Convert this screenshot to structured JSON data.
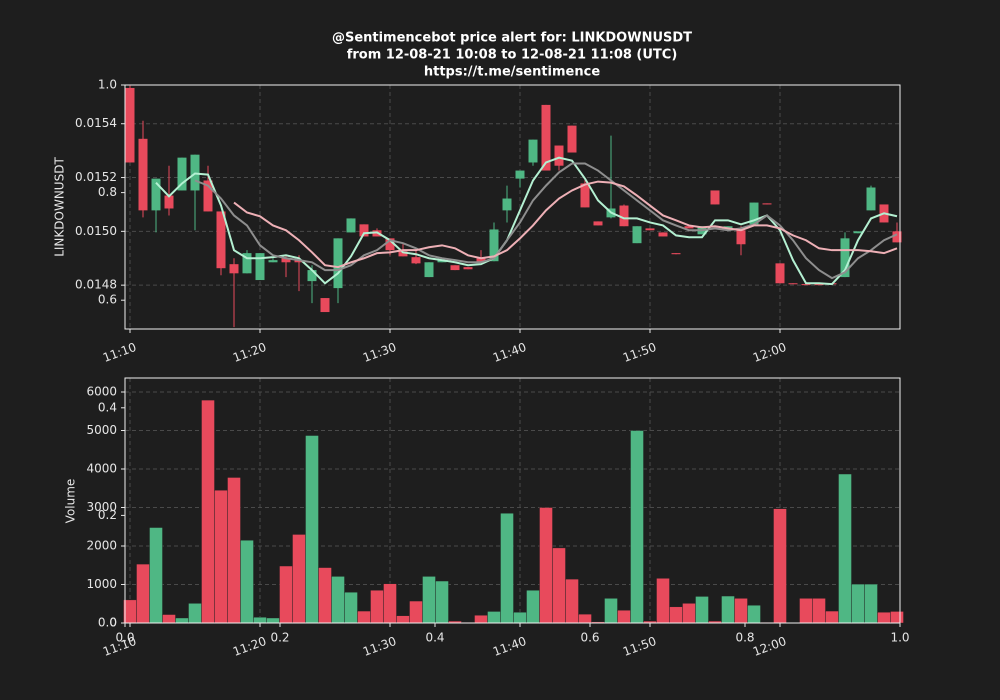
{
  "chart_data": [
    {
      "type": "candlestick",
      "title": "@Sentimencebot price alert for: LINKDOWNUSDT",
      "subtitle": "from 12-08-21 10:08 to 12-08-21 11:08 (UTC)",
      "url": "https://t.me/sentimence",
      "ylabel": "LINKDOWNUSDT",
      "categories": [
        "11:10",
        null,
        null,
        null,
        null,
        null,
        null,
        null,
        null,
        null,
        "11:20",
        null,
        null,
        null,
        null,
        null,
        null,
        null,
        null,
        null,
        "11:30",
        null,
        null,
        null,
        null,
        null,
        null,
        null,
        null,
        null,
        "11:40",
        null,
        null,
        null,
        null,
        null,
        null,
        null,
        null,
        null,
        "11:50",
        null,
        null,
        null,
        null,
        null,
        null,
        null,
        null,
        null,
        "12:00",
        null,
        null,
        null,
        null,
        null,
        null,
        null,
        null,
        null
      ],
      "open": [
        0.015533,
        0.015344,
        0.015078,
        0.015133,
        0.015152,
        0.015152,
        0.015189,
        0.015074,
        0.014878,
        0.014844,
        0.014819,
        0.014885,
        0.0149,
        0.014893,
        0.014815,
        0.014752,
        0.014789,
        0.014996,
        0.015026,
        0.015004,
        0.014974,
        0.014926,
        0.014904,
        0.01483,
        0.014885,
        0.014874,
        0.014867,
        0.0149,
        0.014889,
        0.015078,
        0.015196,
        0.015256,
        0.01547,
        0.015319,
        0.015393,
        0.015178,
        0.015037,
        0.015052,
        0.015096,
        0.014956,
        0.015011,
        0.014996,
        0.014919,
        0.015019,
        0.014989,
        0.015152,
        0.015004,
        0.015004,
        0.015026,
        0.015104,
        0.014881,
        0.014807,
        0.014804,
        0.014804,
        0.014807,
        0.01483,
        0.014993,
        0.015078,
        0.0151,
        0.015
      ],
      "high": [
        0.015541,
        0.015411,
        0.015196,
        0.015244,
        0.015274,
        0.015285,
        0.015244,
        0.015074,
        0.0149,
        0.01493,
        0.014919,
        0.0149,
        0.014911,
        0.014911,
        0.014874,
        0.014752,
        0.014974,
        0.015048,
        0.015026,
        0.015011,
        0.014974,
        0.014956,
        0.01493,
        0.014885,
        0.0149,
        0.014874,
        0.014867,
        0.01493,
        0.015033,
        0.01517,
        0.015226,
        0.015341,
        0.01547,
        0.015319,
        0.015393,
        0.015196,
        0.015037,
        0.015356,
        0.0151,
        0.015019,
        0.015011,
        0.014996,
        0.014919,
        0.015019,
        0.015019,
        0.015152,
        0.015019,
        0.015019,
        0.015107,
        0.015104,
        0.014881,
        0.014807,
        0.014804,
        0.014804,
        0.014807,
        0.014996,
        0.015,
        0.01517,
        0.0151,
        0.015033
      ],
      "low": [
        0.015256,
        0.015052,
        0.014996,
        0.015059,
        0.015152,
        0.015004,
        0.015074,
        0.014837,
        0.014644,
        0.014844,
        0.014819,
        0.014885,
        0.01483,
        0.014778,
        0.014733,
        0.0147,
        0.014733,
        0.014996,
        0.014981,
        0.014981,
        0.014911,
        0.014907,
        0.014878,
        0.01483,
        0.014885,
        0.014856,
        0.014859,
        0.014885,
        0.014889,
        0.015033,
        0.015163,
        0.015244,
        0.015226,
        0.015226,
        0.015293,
        0.015089,
        0.015022,
        0.015048,
        0.015019,
        0.014956,
        0.015004,
        0.014981,
        0.014915,
        0.015011,
        0.014989,
        0.0151,
        0.015004,
        0.014911,
        0.015026,
        0.0151,
        0.014807,
        0.014804,
        0.0148,
        0.0148,
        0.014804,
        0.01483,
        0.014993,
        0.015078,
        0.015033,
        0.014959
      ],
      "close": [
        0.015256,
        0.015078,
        0.015196,
        0.015085,
        0.015274,
        0.015285,
        0.015074,
        0.014863,
        0.014844,
        0.014919,
        0.014919,
        0.014893,
        0.014885,
        0.014885,
        0.014856,
        0.0147,
        0.014974,
        0.015048,
        0.014981,
        0.014981,
        0.01493,
        0.014907,
        0.014881,
        0.014885,
        0.014893,
        0.014856,
        0.014859,
        0.014885,
        0.015007,
        0.015122,
        0.015226,
        0.015341,
        0.015226,
        0.015244,
        0.015293,
        0.015089,
        0.015022,
        0.015085,
        0.015019,
        0.015019,
        0.015004,
        0.014981,
        0.014915,
        0.015011,
        0.015019,
        0.0151,
        0.015019,
        0.014952,
        0.015107,
        0.0151,
        0.014807,
        0.014804,
        0.0148,
        0.0148,
        0.014804,
        0.014974,
        0.015,
        0.015163,
        0.015033,
        0.014959
      ],
      "up_color": "#4fb784",
      "down_color": "#e84a5c",
      "series": [
        {
          "color": "#b4f0d2",
          "values": [
            null,
            null,
            0.015181,
            0.01513,
            0.015178,
            0.015215,
            0.015211,
            0.015096,
            0.01493,
            0.0149,
            0.0149,
            0.014904,
            0.014911,
            0.0149,
            0.014856,
            0.014807,
            0.014844,
            0.014907,
            0.014993,
            0.014996,
            0.014967,
            0.014922,
            0.014915,
            0.0149,
            0.014893,
            0.014885,
            0.014874,
            0.014878,
            0.0149,
            0.014967,
            0.015078,
            0.015189,
            0.015256,
            0.015274,
            0.015263,
            0.015196,
            0.015115,
            0.01507,
            0.015048,
            0.015048,
            0.015033,
            0.015022,
            0.014985,
            0.014978,
            0.014978,
            0.015041,
            0.015041,
            0.015026,
            0.015041,
            0.015059,
            0.015004,
            0.014893,
            0.014807,
            0.014807,
            0.014804,
            0.014856,
            0.014967,
            0.015048,
            0.015067,
            0.015056
          ]
        },
        {
          "color": "#8e8e8e",
          "values": [
            null,
            null,
            null,
            null,
            null,
            0.015189,
            0.01517,
            0.015122,
            0.015059,
            0.015022,
            0.014948,
            0.014911,
            0.0149,
            0.014893,
            0.014885,
            0.014856,
            0.014856,
            0.014874,
            0.014911,
            0.01493,
            0.014967,
            0.014956,
            0.014937,
            0.014911,
            0.0149,
            0.014893,
            0.014885,
            0.014885,
            0.0149,
            0.014967,
            0.015033,
            0.015115,
            0.01517,
            0.015219,
            0.015252,
            0.015252,
            0.015226,
            0.015189,
            0.015152,
            0.015115,
            0.015078,
            0.015041,
            0.015022,
            0.015004,
            0.015004,
            0.015011,
            0.015004,
            0.015011,
            0.015026,
            0.015059,
            0.015022,
            0.014967,
            0.0149,
            0.014856,
            0.014826,
            0.014848,
            0.0149,
            0.01493,
            0.014967,
            0.014989
          ]
        },
        {
          "color": "#eeb0b6",
          "values": [
            null,
            null,
            null,
            null,
            null,
            null,
            null,
            null,
            0.015107,
            0.01507,
            0.015056,
            0.015022,
            0.015004,
            0.014967,
            0.014922,
            0.014874,
            0.014867,
            0.014885,
            0.0149,
            0.014919,
            0.014922,
            0.01493,
            0.01493,
            0.014941,
            0.014948,
            0.014937,
            0.014911,
            0.0149,
            0.014907,
            0.01493,
            0.014974,
            0.015022,
            0.015078,
            0.015122,
            0.015152,
            0.015174,
            0.015185,
            0.015181,
            0.015167,
            0.015133,
            0.015096,
            0.015059,
            0.015041,
            0.015022,
            0.015015,
            0.015019,
            0.015011,
            0.015004,
            0.015022,
            0.015022,
            0.015011,
            0.014985,
            0.014967,
            0.014937,
            0.01493,
            0.01493,
            0.01493,
            0.014926,
            0.014919,
            0.014937
          ]
        }
      ],
      "ylim": [
        0.014637,
        0.015544
      ],
      "yticks": [
        0.0148,
        {
          "value": 0.015,
          "label": "0.0150"
        },
        0.0152,
        0.0154
      ],
      "grid": true
    },
    {
      "type": "bar",
      "ylabel": "Volume",
      "categories": [
        "11:10",
        null,
        null,
        null,
        null,
        null,
        null,
        null,
        null,
        null,
        "11:20",
        null,
        null,
        null,
        null,
        null,
        null,
        null,
        null,
        null,
        "11:30",
        null,
        null,
        null,
        null,
        null,
        null,
        null,
        null,
        null,
        "11:40",
        null,
        null,
        null,
        null,
        null,
        null,
        null,
        null,
        null,
        "11:50",
        null,
        null,
        null,
        null,
        null,
        null,
        null,
        null,
        null,
        "12:00",
        null,
        null,
        null,
        null,
        null,
        null,
        null,
        null,
        null
      ],
      "values": [
        600,
        1530,
        2480,
        220,
        130,
        510,
        5790,
        3450,
        3780,
        2150,
        150,
        130,
        1480,
        2300,
        4870,
        1440,
        1210,
        800,
        310,
        850,
        1020,
        190,
        570,
        1210,
        1090,
        50,
        20,
        200,
        300,
        2850,
        280,
        850,
        3000,
        1950,
        1140,
        230,
        30,
        640,
        330,
        5000,
        50,
        1160,
        420,
        510,
        690,
        50,
        700,
        640,
        460,
        20,
        2970,
        10,
        640,
        640,
        310,
        3870,
        1010,
        1010,
        280,
        300
      ],
      "colors": [
        "#e84a5c",
        "#e84a5c",
        "#4fb784",
        "#e84a5c",
        "#4fb784",
        "#4fb784",
        "#e84a5c",
        "#e84a5c",
        "#e84a5c",
        "#4fb784",
        "#4fb784",
        "#4fb784",
        "#e84a5c",
        "#e84a5c",
        "#4fb784",
        "#e84a5c",
        "#4fb784",
        "#4fb784",
        "#e84a5c",
        "#e84a5c",
        "#e84a5c",
        "#e84a5c",
        "#e84a5c",
        "#4fb784",
        "#4fb784",
        "#e84a5c",
        "#e84a5c",
        "#e84a5c",
        "#4fb784",
        "#4fb784",
        "#4fb784",
        "#4fb784",
        "#e84a5c",
        "#e84a5c",
        "#e84a5c",
        "#e84a5c",
        "#e84a5c",
        "#4fb784",
        "#e84a5c",
        "#4fb784",
        "#e84a5c",
        "#e84a5c",
        "#e84a5c",
        "#e84a5c",
        "#4fb784",
        "#e84a5c",
        "#4fb784",
        "#e84a5c",
        "#4fb784",
        "#e84a5c",
        "#e84a5c",
        "#e84a5c",
        "#e84a5c",
        "#e84a5c",
        "#e84a5c",
        "#4fb784",
        "#4fb784",
        "#4fb784",
        "#e84a5c",
        "#e84a5c"
      ],
      "ylim": [
        0,
        6364
      ],
      "yticks": [
        0,
        1000,
        2000,
        3000,
        4000,
        5000,
        6000
      ],
      "grid": true
    },
    {
      "type": "axes",
      "xlim": [
        0,
        1
      ],
      "ylim": [
        0,
        1
      ],
      "xticks": [
        {
          "value": 0,
          "label": "0.0"
        },
        0.2,
        0.4,
        0.6,
        0.8,
        {
          "value": 1,
          "label": "1.0"
        }
      ],
      "yticks": [
        {
          "value": 0,
          "label": "0.0"
        },
        0.2,
        0.4,
        0.6,
        0.8,
        {
          "value": 1,
          "label": "1.0"
        }
      ]
    }
  ]
}
